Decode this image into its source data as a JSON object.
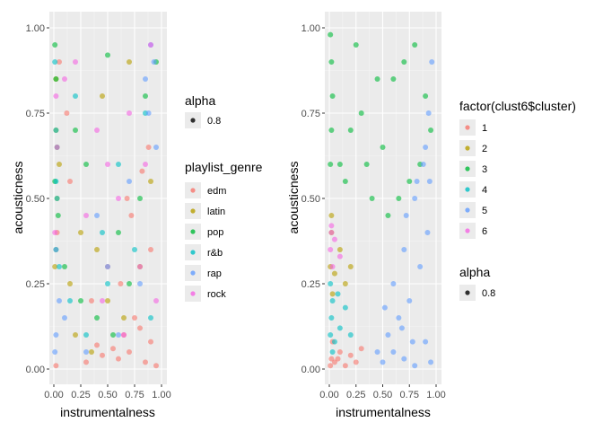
{
  "chart_data": [
    {
      "type": "scatter",
      "title": "",
      "xlabel": "instrumentalness",
      "ylabel": "acousticness",
      "xlim": [
        0,
        1
      ],
      "ylim": [
        0,
        1
      ],
      "x_ticks": [
        "0.00",
        "0.25",
        "0.50",
        "0.75",
        "1.00"
      ],
      "y_ticks": [
        "0.00",
        "0.25",
        "0.50",
        "0.75",
        "1.00"
      ],
      "x_tick_values": [
        0,
        0.25,
        0.5,
        0.75,
        1
      ],
      "y_tick_values": [
        0,
        0.25,
        0.5,
        0.75,
        1
      ],
      "grid": true,
      "point_alpha": 0.8,
      "legend_position": "right",
      "legends": [
        {
          "title": "alpha",
          "entries": [
            {
              "label": "0.8",
              "color": "#000000"
            }
          ]
        },
        {
          "title": "playlist_genre",
          "entries": [
            {
              "label": "edm",
              "color": "#F8766D"
            },
            {
              "label": "latin",
              "color": "#B79F00"
            },
            {
              "label": "pop",
              "color": "#00BA38"
            },
            {
              "label": "r&b",
              "color": "#00BFC4"
            },
            {
              "label": "rap",
              "color": "#619CFF"
            },
            {
              "label": "rock",
              "color": "#F564E3"
            }
          ]
        }
      ],
      "series": [
        {
          "name": "edm",
          "color": "#F8766D",
          "x": [
            0.02,
            0.85,
            0.7,
            0.9,
            0.6,
            0.45,
            0.3,
            0.95,
            0.8,
            0.55,
            0.65,
            0.75,
            0.4,
            0.35,
            0.9,
            0.15,
            0.5,
            0.72,
            0.88,
            0.62,
            0.05,
            0.12,
            0.03,
            0.68,
            0.82
          ],
          "y": [
            0.01,
            0.02,
            0.05,
            0.08,
            0.03,
            0.04,
            0.02,
            0.01,
            0.12,
            0.06,
            0.1,
            0.15,
            0.07,
            0.2,
            0.35,
            0.55,
            0.3,
            0.45,
            0.65,
            0.25,
            0.9,
            0.75,
            0.4,
            0.5,
            0.58
          ]
        },
        {
          "name": "latin",
          "color": "#B79F00",
          "x": [
            0.01,
            0.03,
            0.02,
            0.2,
            0.35,
            0.5,
            0.65,
            0.8,
            0.25,
            0.45,
            0.05,
            0.15,
            0.7,
            0.9,
            0.4,
            0.02
          ],
          "y": [
            0.3,
            0.5,
            0.7,
            0.1,
            0.05,
            0.2,
            0.15,
            0.3,
            0.4,
            0.8,
            0.6,
            0.25,
            0.9,
            0.55,
            0.35,
            0.85
          ]
        },
        {
          "name": "pop",
          "color": "#00BA38",
          "x": [
            0.01,
            0.02,
            0.03,
            0.04,
            0.1,
            0.25,
            0.4,
            0.55,
            0.7,
            0.85,
            0.95,
            0.3,
            0.6,
            0.8,
            0.2,
            0.02,
            0.01,
            0.5
          ],
          "y": [
            0.95,
            0.85,
            0.65,
            0.45,
            0.3,
            0.2,
            0.15,
            0.1,
            0.25,
            0.8,
            0.9,
            0.6,
            0.4,
            0.5,
            0.7,
            0.35,
            0.55,
            0.92
          ]
        },
        {
          "name": "r&b",
          "color": "#00BFC4",
          "x": [
            0.01,
            0.02,
            0.03,
            0.05,
            0.15,
            0.3,
            0.45,
            0.6,
            0.75,
            0.9,
            0.2,
            0.5,
            0.85,
            0.02
          ],
          "y": [
            0.9,
            0.7,
            0.5,
            0.3,
            0.2,
            0.1,
            0.4,
            0.6,
            0.35,
            0.15,
            0.8,
            0.25,
            0.75,
            0.55
          ]
        },
        {
          "name": "rap",
          "color": "#619CFF",
          "x": [
            0.01,
            0.02,
            0.05,
            0.1,
            0.3,
            0.5,
            0.7,
            0.85,
            0.9,
            0.95,
            0.6,
            0.4,
            0.02,
            0.8,
            0.93,
            0.88
          ],
          "y": [
            0.05,
            0.1,
            0.2,
            0.15,
            0.05,
            0.3,
            0.55,
            0.85,
            0.95,
            0.65,
            0.1,
            0.45,
            0.35,
            0.25,
            0.9,
            0.75
          ]
        },
        {
          "name": "rock",
          "color": "#F564E3",
          "x": [
            0.01,
            0.02,
            0.2,
            0.4,
            0.6,
            0.8,
            0.95,
            0.3,
            0.5,
            0.7,
            0.9,
            0.1,
            0.45,
            0.65,
            0.85,
            0.03
          ],
          "y": [
            0.4,
            0.8,
            0.9,
            0.7,
            0.5,
            0.3,
            0.2,
            0.45,
            0.6,
            0.75,
            0.95,
            0.85,
            0.2,
            0.1,
            0.6,
            0.65
          ]
        }
      ]
    },
    {
      "type": "scatter",
      "title": "",
      "xlabel": "instrumentalness",
      "ylabel": "acousticness",
      "xlim": [
        0,
        1
      ],
      "ylim": [
        0,
        1
      ],
      "x_ticks": [
        "0.00",
        "0.25",
        "0.50",
        "0.75",
        "1.00"
      ],
      "y_ticks": [
        "0.00",
        "0.25",
        "0.50",
        "0.75",
        "1.00"
      ],
      "x_tick_values": [
        0,
        0.25,
        0.5,
        0.75,
        1
      ],
      "y_tick_values": [
        0,
        0.25,
        0.5,
        0.75,
        1
      ],
      "grid": true,
      "point_alpha": 0.8,
      "legend_position": "right",
      "legends": [
        {
          "title": "factor(clust6$cluster)",
          "entries": [
            {
              "label": "1",
              "color": "#F8766D"
            },
            {
              "label": "2",
              "color": "#B79F00"
            },
            {
              "label": "3",
              "color": "#00BA38"
            },
            {
              "label": "4",
              "color": "#00BFC4"
            },
            {
              "label": "5",
              "color": "#619CFF"
            },
            {
              "label": "6",
              "color": "#F564E3"
            }
          ]
        },
        {
          "title": "alpha",
          "entries": [
            {
              "label": "0.8",
              "color": "#000000"
            }
          ]
        }
      ],
      "series": [
        {
          "name": "1",
          "color": "#F8766D",
          "x": [
            0.01,
            0.02,
            0.05,
            0.1,
            0.15,
            0.2,
            0.25,
            0.3,
            0.03,
            0.08
          ],
          "y": [
            0.01,
            0.03,
            0.02,
            0.05,
            0.01,
            0.04,
            0.02,
            0.06,
            0.08,
            0.03
          ]
        },
        {
          "name": "2",
          "color": "#B79F00",
          "x": [
            0.01,
            0.02,
            0.03,
            0.05,
            0.1,
            0.15,
            0.2,
            0.02
          ],
          "y": [
            0.3,
            0.4,
            0.22,
            0.28,
            0.35,
            0.25,
            0.3,
            0.45
          ]
        },
        {
          "name": "3",
          "color": "#00BA38",
          "x": [
            0.01,
            0.02,
            0.03,
            0.1,
            0.2,
            0.3,
            0.4,
            0.5,
            0.6,
            0.7,
            0.8,
            0.9,
            0.95,
            0.15,
            0.35,
            0.55,
            0.75,
            0.85,
            0.45,
            0.25,
            0.65,
            0.02,
            0.01
          ],
          "y": [
            0.98,
            0.9,
            0.8,
            0.6,
            0.7,
            0.75,
            0.5,
            0.65,
            0.85,
            0.9,
            0.95,
            0.8,
            0.7,
            0.55,
            0.6,
            0.45,
            0.55,
            0.6,
            0.85,
            0.95,
            0.5,
            0.7,
            0.6
          ]
        },
        {
          "name": "4",
          "color": "#00BFC4",
          "x": [
            0.01,
            0.02,
            0.03,
            0.05,
            0.1,
            0.15,
            0.2,
            0.03,
            0.08,
            0.01
          ],
          "y": [
            0.1,
            0.15,
            0.2,
            0.08,
            0.12,
            0.18,
            0.1,
            0.05,
            0.22,
            0.25
          ]
        },
        {
          "name": "5",
          "color": "#619CFF",
          "x": [
            0.5,
            0.6,
            0.7,
            0.8,
            0.9,
            0.95,
            0.55,
            0.65,
            0.75,
            0.85,
            0.92,
            0.6,
            0.7,
            0.8,
            0.88,
            0.93,
            0.96,
            0.72,
            0.82,
            0.9,
            0.94,
            0.45,
            0.52,
            0.68,
            0.78
          ],
          "y": [
            0.02,
            0.05,
            0.03,
            0.01,
            0.08,
            0.02,
            0.1,
            0.15,
            0.2,
            0.3,
            0.4,
            0.25,
            0.35,
            0.5,
            0.6,
            0.75,
            0.9,
            0.45,
            0.55,
            0.65,
            0.55,
            0.05,
            0.18,
            0.12,
            0.08
          ]
        },
        {
          "name": "6",
          "color": "#F564E3",
          "x": [
            0.01,
            0.02,
            0.03,
            0.05,
            0.1,
            0.02
          ],
          "y": [
            0.35,
            0.4,
            0.3,
            0.38,
            0.33,
            0.42
          ]
        }
      ]
    }
  ]
}
